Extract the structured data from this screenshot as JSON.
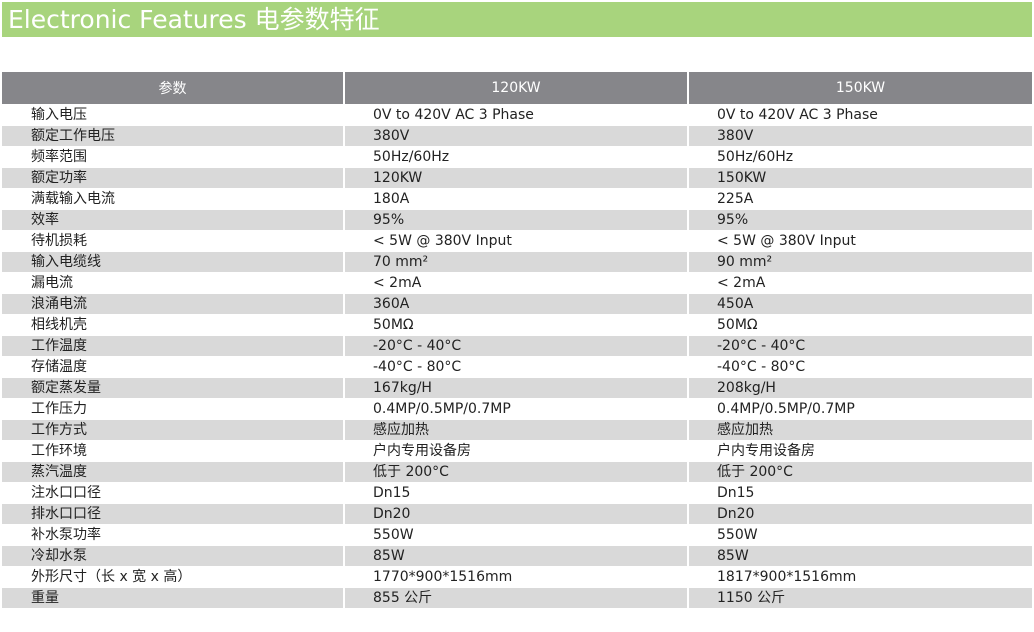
{
  "header": {
    "title": "Electronic Features 电参数特征"
  },
  "table": {
    "columns": [
      "参数",
      "120KW",
      "150KW"
    ],
    "rows": [
      [
        "输入电压",
        "0V to 420V AC 3 Phase",
        "0V to 420V AC 3 Phase"
      ],
      [
        "额定工作电压",
        "380V",
        "380V"
      ],
      [
        "频率范围",
        "50Hz/60Hz",
        "50Hz/60Hz"
      ],
      [
        "额定功率",
        "120KW",
        "150KW"
      ],
      [
        "满载输入电流",
        "180A",
        "225A"
      ],
      [
        "效率",
        "95%",
        "95%"
      ],
      [
        "待机损耗",
        " < 5W @ 380V  Input",
        " < 5W @ 380V  Input"
      ],
      [
        "输入电缆线",
        "70 mm²",
        "90 mm²"
      ],
      [
        "漏电流",
        " < 2mA",
        " < 2mA"
      ],
      [
        "浪涌电流",
        "360A",
        "450A"
      ],
      [
        "相线机壳",
        "50MΩ",
        "50MΩ"
      ],
      [
        "工作温度",
        "-20°C - 40°C",
        "-20°C - 40°C"
      ],
      [
        "存储温度",
        "-40°C - 80°C",
        "-40°C - 80°C"
      ],
      [
        "额定蒸发量",
        "167kg/H",
        "208kg/H"
      ],
      [
        "工作压力",
        "0.4MP/0.5MP/0.7MP",
        "0.4MP/0.5MP/0.7MP"
      ],
      [
        "工作方式",
        "感应加热",
        "感应加热"
      ],
      [
        "工作环境",
        "户内专用设备房",
        "户内专用设备房"
      ],
      [
        "蒸汽温度",
        "低于 200°C",
        "低于 200°C"
      ],
      [
        "注水口口径",
        "Dn15",
        "Dn15"
      ],
      [
        "排水口口径",
        "Dn20",
        "Dn20"
      ],
      [
        "补水泵功率",
        "550W",
        "550W"
      ],
      [
        "冷却水泵",
        "85W",
        "85W"
      ],
      [
        "外形尺寸（长 x 宽 x 高）",
        "1770*900*1516mm",
        "1817*900*1516mm"
      ],
      [
        "重量",
        "855 公斤",
        " 1150 公斤"
      ]
    ]
  },
  "colors": {
    "banner": "#a8d47d",
    "header_row": "#86868a",
    "shaded_row": "#d9d9d9"
  }
}
